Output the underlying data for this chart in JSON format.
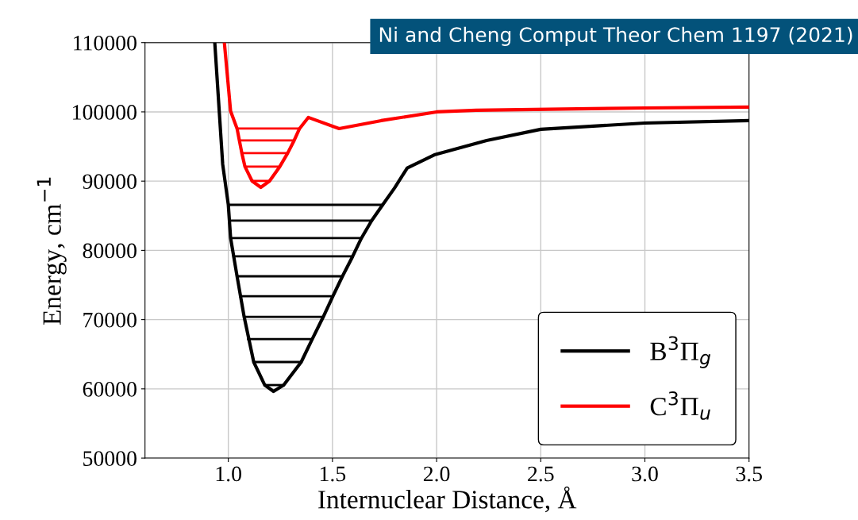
{
  "chart_data": {
    "type": "line",
    "xlabel": "Internuclear Distance, Å",
    "ylabel": "Energy, cm$^{−1}$",
    "annotations": [
      "Ni and Cheng Comput Theor Chem 1197 (2021)"
    ],
    "xlim": [
      0.6,
      3.5
    ],
    "ylim": [
      50000,
      110000
    ],
    "xticks": [
      {
        "value": 1.0,
        "label": "1.0"
      },
      {
        "value": 1.5,
        "label": "1.5"
      },
      {
        "value": 2.0,
        "label": "2.0"
      },
      {
        "value": 2.5,
        "label": "2.5"
      },
      {
        "value": 3.0,
        "label": "3.0"
      },
      {
        "value": 3.5,
        "label": "3.5"
      }
    ],
    "yticks": [
      50000,
      60000,
      70000,
      80000,
      90000,
      100000,
      110000
    ],
    "grid": true,
    "legend": "bottom right",
    "marker": "none",
    "line_style": "solid",
    "series": [
      {
        "name": "B$^{3}$Π$_{g}$",
        "color": "#000000",
        "x": [
          0.935,
          0.973,
          1.0,
          1.011,
          1.042,
          1.076,
          1.122,
          1.175,
          1.217,
          1.266,
          1.35,
          1.403,
          1.456,
          1.502,
          1.548,
          1.597,
          1.639,
          1.688,
          1.741,
          1.798,
          1.859,
          1.989,
          2.24,
          2.5,
          3.0,
          3.5
        ],
        "values": [
          110000,
          92430,
          86580,
          81770,
          76260,
          70410,
          63880,
          60550,
          59630,
          60550,
          63880,
          67200,
          70410,
          73390,
          76260,
          79130,
          81770,
          84290,
          86580,
          89000,
          91900,
          93800,
          95870,
          97480,
          98390,
          98740
        ]
      },
      {
        "name": "C$^{3}$Π$_{u}$",
        "color": "#ff0000",
        "x": [
          0.981,
          1.011,
          1.042,
          1.053,
          1.065,
          1.08,
          1.114,
          1.156,
          1.198,
          1.247,
          1.285,
          1.316,
          1.342,
          1.384,
          1.532,
          1.734,
          2.0,
          2.19,
          3.0,
          3.5
        ],
        "values": [
          110000,
          100100,
          97590,
          95870,
          94040,
          92090,
          90020,
          89100,
          90020,
          92090,
          94040,
          95870,
          97590,
          99200,
          97590,
          98740,
          100000,
          100230,
          100570,
          100690
        ]
      },
      {
        "color": "#000000",
        "x": [
          1.175,
          1.266
        ],
        "values": [
          60550,
          60550
        ]
      },
      {
        "color": "#000000",
        "x": [
          1.122,
          1.35
        ],
        "values": [
          63880,
          63880
        ]
      },
      {
        "color": "#000000",
        "x": [
          1.095,
          1.403
        ],
        "values": [
          67200,
          67200
        ]
      },
      {
        "color": "#000000",
        "x": [
          1.076,
          1.456
        ],
        "values": [
          70410,
          70410
        ]
      },
      {
        "color": "#000000",
        "x": [
          1.057,
          1.502
        ],
        "values": [
          73390,
          73390
        ]
      },
      {
        "color": "#000000",
        "x": [
          1.042,
          1.548
        ],
        "values": [
          76260,
          76260
        ]
      },
      {
        "color": "#000000",
        "x": [
          1.025,
          1.597
        ],
        "values": [
          79130,
          79130
        ]
      },
      {
        "color": "#000000",
        "x": [
          1.011,
          1.639
        ],
        "values": [
          81770,
          81770
        ]
      },
      {
        "color": "#000000",
        "x": [
          1.008,
          1.688
        ],
        "values": [
          84290,
          84290
        ]
      },
      {
        "color": "#000000",
        "x": [
          1.004,
          1.741
        ],
        "values": [
          86580,
          86580
        ]
      },
      {
        "color": "#ff0000",
        "x": [
          1.114,
          1.198
        ],
        "values": [
          90020,
          90020
        ]
      },
      {
        "color": "#ff0000",
        "x": [
          1.08,
          1.247
        ],
        "values": [
          92090,
          92090
        ]
      },
      {
        "color": "#ff0000",
        "x": [
          1.065,
          1.285
        ],
        "values": [
          94040,
          94040
        ]
      },
      {
        "color": "#ff0000",
        "x": [
          1.053,
          1.316
        ],
        "values": [
          95870,
          95870
        ]
      },
      {
        "color": "#ff0000",
        "x": [
          1.042,
          1.342
        ],
        "values": [
          97590,
          97590
        ]
      }
    ]
  }
}
